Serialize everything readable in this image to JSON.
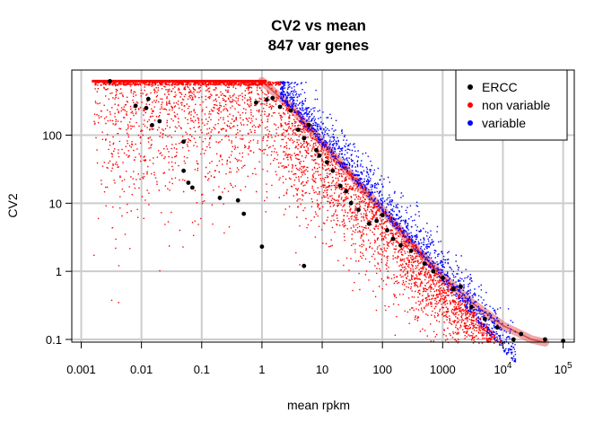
{
  "chart_data": {
    "type": "scatter",
    "title": "CV2 vs mean",
    "subtitle": "847 var genes",
    "xlabel": "mean rpkm",
    "ylabel": "CV2",
    "xscale": "log",
    "yscale": "log",
    "xlim": [
      0.0015,
      100000
    ],
    "ylim": [
      0.09,
      900
    ],
    "grid": true,
    "legend_position": "top-right",
    "x_ticks": [
      {
        "value": 0.001,
        "label": "0.001"
      },
      {
        "value": 0.01,
        "label": "0.01"
      },
      {
        "value": 0.1,
        "label": "0.1"
      },
      {
        "value": 1,
        "label": "1"
      },
      {
        "value": 10,
        "label": "10"
      },
      {
        "value": 100,
        "label": "100"
      },
      {
        "value": 1000,
        "label": "1000"
      },
      {
        "value": 10000,
        "label": "10",
        "exp": "4"
      },
      {
        "value": 100000,
        "label": "10",
        "exp": "5"
      }
    ],
    "y_ticks": [
      {
        "value": 0.1,
        "label": "0.1"
      },
      {
        "value": 1,
        "label": "1"
      },
      {
        "value": 10,
        "label": "10"
      },
      {
        "value": 100,
        "label": "100"
      }
    ],
    "series": [
      {
        "name": "ERCC",
        "color": "#000000",
        "points": [
          [
            0.003,
            620
          ],
          [
            0.008,
            270
          ],
          [
            0.012,
            250
          ],
          [
            0.013,
            340
          ],
          [
            0.015,
            140
          ],
          [
            0.02,
            160
          ],
          [
            0.05,
            80
          ],
          [
            0.05,
            30
          ],
          [
            0.06,
            20
          ],
          [
            0.07,
            17
          ],
          [
            0.2,
            12
          ],
          [
            0.4,
            11
          ],
          [
            0.5,
            7
          ],
          [
            0.8,
            300
          ],
          [
            1,
            2.3
          ],
          [
            1.2,
            330
          ],
          [
            1.5,
            350
          ],
          [
            2,
            260
          ],
          [
            3,
            230
          ],
          [
            4,
            120
          ],
          [
            5,
            1.2
          ],
          [
            5,
            90
          ],
          [
            6,
            140
          ],
          [
            8,
            60
          ],
          [
            9,
            50
          ],
          [
            12,
            40
          ],
          [
            15,
            30
          ],
          [
            20,
            18
          ],
          [
            25,
            15
          ],
          [
            30,
            10
          ],
          [
            40,
            8
          ],
          [
            60,
            5
          ],
          [
            80,
            5.5
          ],
          [
            100,
            6.7
          ],
          [
            120,
            4
          ],
          [
            150,
            3
          ],
          [
            200,
            2.4
          ],
          [
            300,
            2
          ],
          [
            500,
            1.3
          ],
          [
            700,
            1
          ],
          [
            1000,
            0.8
          ],
          [
            1500,
            0.55
          ],
          [
            2000,
            0.6
          ],
          [
            3000,
            0.3
          ],
          [
            5000,
            0.2
          ],
          [
            8000,
            0.15
          ],
          [
            15000,
            0.1
          ],
          [
            20000,
            0.12
          ],
          [
            50000,
            0.1
          ],
          [
            100000,
            0.095
          ]
        ]
      },
      {
        "name": "non variable",
        "color": "#ff0000"
      },
      {
        "name": "variable",
        "color": "#0000ff"
      }
    ],
    "trend": {
      "color": "#e87070",
      "description": "fitted CV2 ~ mean relationship",
      "points": [
        [
          1.0,
          620
        ],
        [
          3,
          260
        ],
        [
          10,
          78
        ],
        [
          30,
          26
        ],
        [
          100,
          8
        ],
        [
          300,
          2.6
        ],
        [
          1000,
          0.85
        ],
        [
          3000,
          0.35
        ],
        [
          10000,
          0.16
        ],
        [
          30000,
          0.1
        ],
        [
          50000,
          0.09
        ]
      ]
    }
  }
}
